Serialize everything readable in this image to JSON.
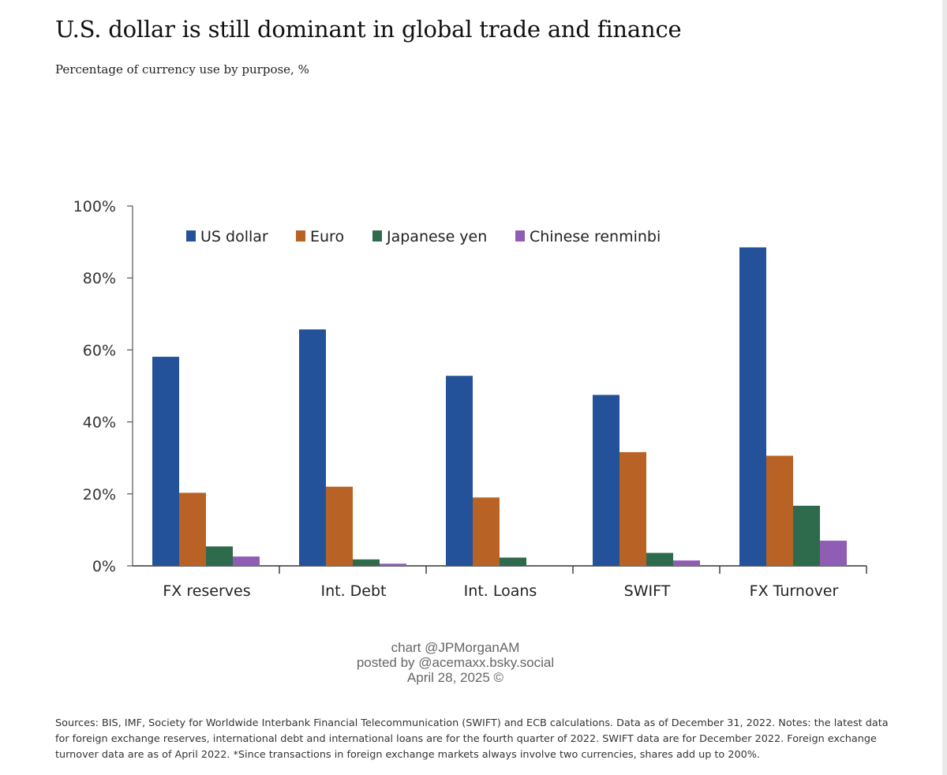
{
  "title": "U.S. dollar is still dominant in global trade and finance",
  "subtitle": "Percentage of currency use by purpose, %",
  "chart_data": {
    "type": "bar",
    "categories": [
      "FX reserves",
      "Int. Debt",
      "Int. Loans",
      "SWIFT",
      "FX Turnover"
    ],
    "series": [
      {
        "name": "US dollar",
        "color": "#24529a",
        "values": [
          58.1,
          65.7,
          52.8,
          47.5,
          88.5
        ]
      },
      {
        "name": "Euro",
        "color": "#b86325",
        "values": [
          20.3,
          22.0,
          19.0,
          31.6,
          30.6
        ]
      },
      {
        "name": "Japanese yen",
        "color": "#2d6b4c",
        "values": [
          5.4,
          1.8,
          2.3,
          3.6,
          16.7
        ]
      },
      {
        "name": "Chinese renminbi",
        "color": "#8f5db4",
        "values": [
          2.6,
          0.6,
          0.0,
          1.5,
          7.0
        ]
      }
    ],
    "yticks": [
      "0%",
      "20%",
      "40%",
      "60%",
      "80%",
      "100%"
    ],
    "ylim": [
      0,
      100
    ],
    "legend_position": "top-inside",
    "grid": false
  },
  "credit": {
    "line1": "chart @JPMorganAM",
    "line2": "posted by @acemaxx.bsky.social",
    "line3": "April 28, 2025 ©"
  },
  "footnote": "Sources: BIS, IMF, Society for Worldwide Interbank Financial Telecommunication (SWIFT) and ECB calculations. Data as of December 31, 2022. Notes: the latest data for foreign exchange reserves, international debt and international loans are for the fourth quarter of 2022. SWIFT data are for December 2022. Foreign exchange turnover data are as of April 2022. *Since transactions in foreign exchange markets always involve two currencies, shares add up to 200%."
}
